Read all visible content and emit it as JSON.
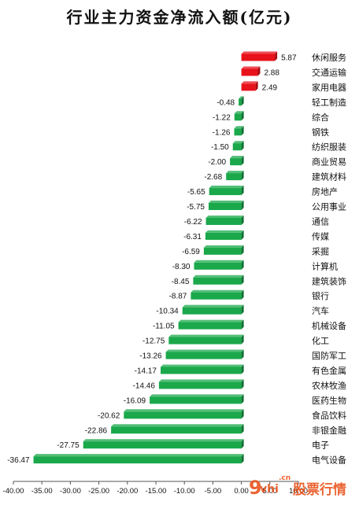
{
  "chart_data": {
    "type": "bar",
    "orientation": "horizontal",
    "title": "行业主力资金净流入额(亿元)",
    "categories": [
      "休闲服务",
      "交通运输",
      "家用电器",
      "轻工制造",
      "综合",
      "钢铁",
      "纺织服装",
      "商业贸易",
      "建筑材料",
      "房地产",
      "公用事业",
      "通信",
      "传媒",
      "采掘",
      "计算机",
      "建筑装饰",
      "银行",
      "汽车",
      "机械设备",
      "化工",
      "国防军工",
      "有色金属",
      "农林牧渔",
      "医药生物",
      "食品饮料",
      "非银金融",
      "电子",
      "电气设备"
    ],
    "values": [
      5.87,
      2.88,
      2.49,
      -0.48,
      -1.22,
      -1.26,
      -1.5,
      -2.0,
      -2.68,
      -5.65,
      -5.75,
      -6.22,
      -6.31,
      -6.59,
      -8.3,
      -8.45,
      -8.87,
      -10.34,
      -11.05,
      -12.75,
      -13.26,
      -14.17,
      -14.46,
      -16.09,
      -20.62,
      -22.86,
      -27.75,
      -36.47
    ],
    "value_labels": [
      "5.87",
      "2.88",
      "2.49",
      "-0.48",
      "-1.22",
      "-1.26",
      "-1.50",
      "-2.00",
      "-2.68",
      "-5.65",
      "-5.75",
      "-6.22",
      "-6.31",
      "-6.59",
      "-8.30",
      "-8.45",
      "-8.87",
      "-10.34",
      "-11.05",
      "-12.75",
      "-13.26",
      "-14.17",
      "-14.46",
      "-16.09",
      "-20.62",
      "-22.86",
      "-27.75",
      "-36.47"
    ],
    "xticks": [
      -40,
      -35,
      -30,
      -25,
      -20,
      -15,
      -10,
      -5,
      0,
      5,
      10
    ],
    "xtick_labels": [
      "-40.00",
      "-35.00",
      "-30.00",
      "-25.00",
      "-20.00",
      "-15.00",
      "-10.00",
      "-5.00",
      "0.00",
      "5.00",
      "10.00"
    ],
    "xlim": [
      -40,
      10
    ],
    "grid": false,
    "legend": "none",
    "colors": {
      "positive": "#e8121b",
      "negative": "#1aa84b"
    }
  },
  "watermark": {
    "text": "股票行情",
    "logo_letter": "9",
    "logo_sub": "vhi",
    "logo_domain": ".cn",
    "color": "#e9541e"
  }
}
